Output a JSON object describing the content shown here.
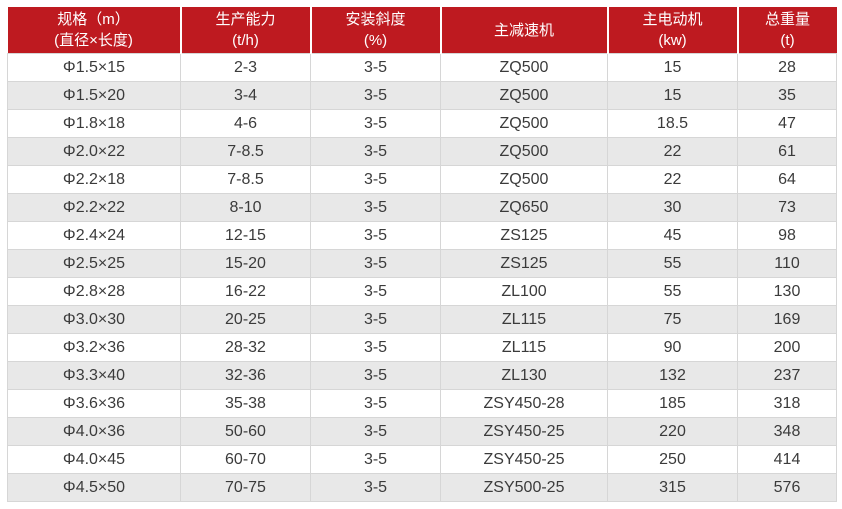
{
  "table": {
    "headers": [
      {
        "line1": "规格（m）",
        "line2": "(直径×长度)"
      },
      {
        "line1": "生产能力",
        "line2": "(t/h)"
      },
      {
        "line1": "安装斜度",
        "line2": "(%)"
      },
      {
        "line1": "主减速机",
        "line2": ""
      },
      {
        "line1": "主电动机",
        "line2": "(kw)"
      },
      {
        "line1": "总重量",
        "line2": "(t)"
      }
    ],
    "rows": [
      [
        "Φ1.5×15",
        "2-3",
        "3-5",
        "ZQ500",
        "15",
        "28"
      ],
      [
        "Φ1.5×20",
        "3-4",
        "3-5",
        "ZQ500",
        "15",
        "35"
      ],
      [
        "Φ1.8×18",
        "4-6",
        "3-5",
        "ZQ500",
        "18.5",
        "47"
      ],
      [
        "Φ2.0×22",
        "7-8.5",
        "3-5",
        "ZQ500",
        "22",
        "61"
      ],
      [
        "Φ2.2×18",
        "7-8.5",
        "3-5",
        "ZQ500",
        "22",
        "64"
      ],
      [
        "Φ2.2×22",
        "8-10",
        "3-5",
        "ZQ650",
        "30",
        "73"
      ],
      [
        "Φ2.4×24",
        "12-15",
        "3-5",
        "ZS125",
        "45",
        "98"
      ],
      [
        "Φ2.5×25",
        "15-20",
        "3-5",
        "ZS125",
        "55",
        "110"
      ],
      [
        "Φ2.8×28",
        "16-22",
        "3-5",
        "ZL100",
        "55",
        "130"
      ],
      [
        "Φ3.0×30",
        "20-25",
        "3-5",
        "ZL115",
        "75",
        "169"
      ],
      [
        "Φ3.2×36",
        "28-32",
        "3-5",
        "ZL115",
        "90",
        "200"
      ],
      [
        "Φ3.3×40",
        "32-36",
        "3-5",
        "ZL130",
        "132",
        "237"
      ],
      [
        "Φ3.6×36",
        "35-38",
        "3-5",
        "ZSY450-28",
        "185",
        "318"
      ],
      [
        "Φ4.0×36",
        "50-60",
        "3-5",
        "ZSY450-25",
        "220",
        "348"
      ],
      [
        "Φ4.0×45",
        "60-70",
        "3-5",
        "ZSY450-25",
        "250",
        "414"
      ],
      [
        "Φ4.5×50",
        "70-75",
        "3-5",
        "ZSY500-25",
        "315",
        "576"
      ]
    ]
  },
  "colors": {
    "header_bg": "#be1a20",
    "header_text": "#ffffff",
    "row_even_bg": "#e8e8e8",
    "row_odd_bg": "#ffffff",
    "border": "#d6d6d6",
    "text": "#3b3b3b"
  }
}
